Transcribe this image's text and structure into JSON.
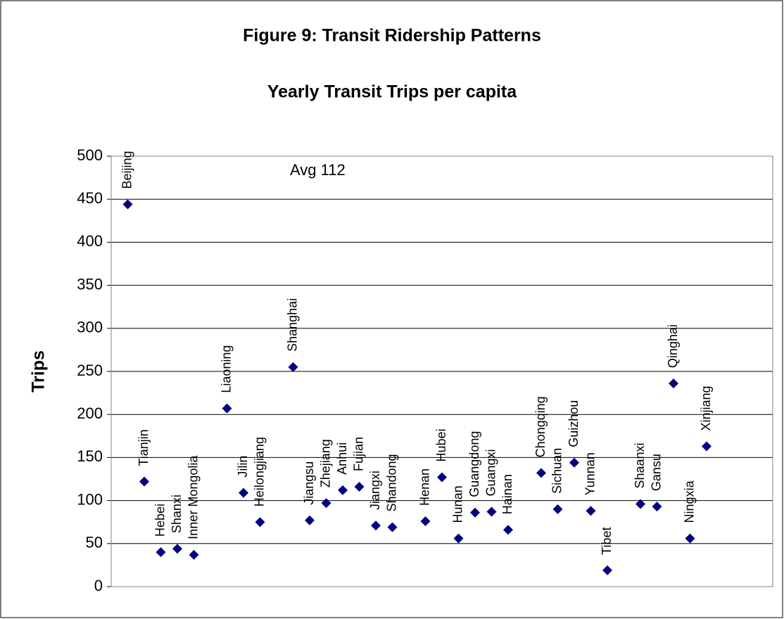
{
  "chart_data": {
    "type": "scatter",
    "title": "Figure 9: Transit Ridership Patterns",
    "subtitle": "Yearly Transit Trips per capita",
    "y_label": "Trips",
    "annotations": [
      "Avg 112"
    ],
    "categories": [
      "Beijing",
      "Tianjin",
      "Hebei",
      "Shanxi",
      "Inner Mongolia",
      "Liaoning",
      "Jilin",
      "Heilongjiang",
      "Shanghai",
      "Jiangsu",
      "Zhejiang",
      "Anhui",
      "Fujian",
      "Jiangxi",
      "Shandong",
      "Henan",
      "Hubei",
      "Hunan",
      "Guangdong",
      "Guangxi",
      "Hainan",
      "Chongqing",
      "Sichuan",
      "Guizhou",
      "Yunnan",
      "Tibet",
      "Shaanxi",
      "Gansu",
      "Qinghai",
      "Ningxia",
      "Xinjiang"
    ],
    "x": [
      1,
      2,
      3,
      4,
      5,
      7,
      8,
      9,
      11,
      12,
      13,
      14,
      15,
      16,
      17,
      19,
      20,
      21,
      22,
      23,
      24,
      26,
      27,
      28,
      29,
      30,
      32,
      33,
      34,
      35,
      36
    ],
    "values": [
      444,
      122,
      40,
      44,
      37,
      207,
      109,
      75,
      255,
      77,
      97,
      112,
      116,
      71,
      69,
      76,
      127,
      56,
      86,
      87,
      66,
      132,
      90,
      144,
      88,
      19,
      96,
      93,
      236,
      56,
      163
    ],
    "color": "#000080",
    "xlim": [
      0,
      40
    ],
    "ylim": [
      0,
      500
    ],
    "yticks": [
      0,
      50,
      100,
      150,
      200,
      250,
      300,
      350,
      400,
      450,
      500
    ],
    "grid": true
  }
}
